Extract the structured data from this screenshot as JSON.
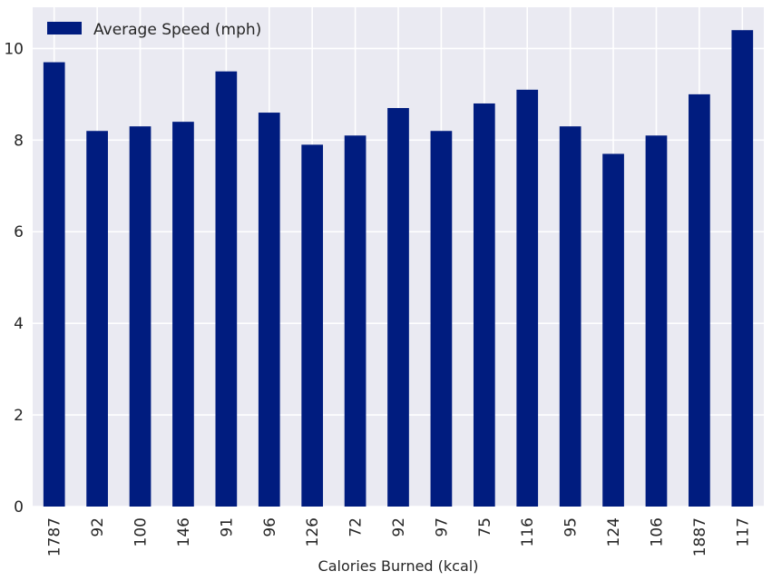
{
  "chart_data": {
    "type": "bar",
    "title": "",
    "xlabel": "Calories Burned (kcal)",
    "ylabel": "",
    "categories": [
      "1787",
      "92",
      "100",
      "146",
      "91",
      "96",
      "126",
      "72",
      "92",
      "97",
      "75",
      "116",
      "95",
      "124",
      "106",
      "1887",
      "117"
    ],
    "series": [
      {
        "name": "Average Speed (mph)",
        "values": [
          9.7,
          8.2,
          8.3,
          8.4,
          9.5,
          8.6,
          7.9,
          8.1,
          8.7,
          8.2,
          8.8,
          9.1,
          8.3,
          7.7,
          8.1,
          9.0,
          10.4
        ],
        "color": "#001c7f"
      }
    ],
    "ylim": [
      0,
      10.9
    ],
    "yticks": [
      0,
      2,
      4,
      6,
      8,
      10
    ],
    "grid": true,
    "legend_position": "top-left",
    "background_color": "#eaeaf2",
    "grid_color": "#ffffff"
  }
}
